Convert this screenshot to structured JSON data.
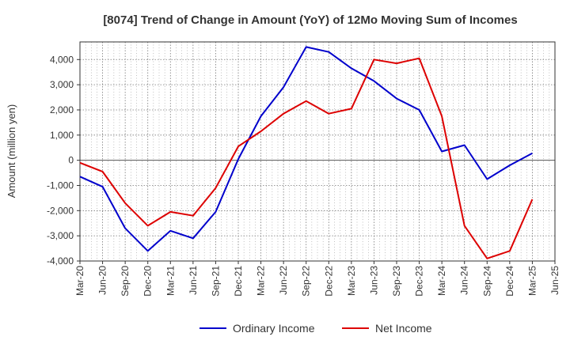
{
  "chart_data": {
    "type": "line",
    "title": "[8074]  Trend of Change in Amount (YoY) of 12Mo Moving Sum of Incomes",
    "xlabel": "",
    "ylabel": "Amount (million yen)",
    "ylim": [
      -4000,
      4700
    ],
    "yticks": [
      -4000,
      -3000,
      -2000,
      -1000,
      0,
      1000,
      2000,
      3000,
      4000
    ],
    "ytick_labels": [
      "-4,000",
      "-3,000",
      "-2,000",
      "-1,000",
      "0",
      "1,000",
      "2,000",
      "3,000",
      "4,000"
    ],
    "categories": [
      "Mar-20",
      "Jun-20",
      "Sep-20",
      "Dec-20",
      "Mar-21",
      "Jun-21",
      "Sep-21",
      "Dec-21",
      "Mar-22",
      "Jun-22",
      "Sep-22",
      "Dec-22",
      "Mar-23",
      "Jun-23",
      "Sep-23",
      "Dec-23",
      "Mar-24",
      "Jun-24",
      "Sep-24",
      "Dec-24",
      "Mar-25",
      "Jun-25"
    ],
    "grid": true,
    "legend_position": "bottom",
    "series": [
      {
        "name": "Ordinary Income",
        "color": "#0000cc",
        "values": [
          -650,
          -1050,
          -2700,
          -3600,
          -2800,
          -3100,
          -2050,
          50,
          1750,
          2900,
          4500,
          4300,
          3650,
          3150,
          2450,
          2000,
          350,
          600,
          -750,
          -200,
          280,
          null
        ]
      },
      {
        "name": "Net Income",
        "color": "#dd0000",
        "values": [
          -100,
          -450,
          -1700,
          -2600,
          -2050,
          -2200,
          -1100,
          550,
          1150,
          1850,
          2350,
          1850,
          2050,
          4000,
          3850,
          4050,
          1750,
          -2600,
          -3900,
          -3600,
          -1550,
          null
        ]
      }
    ]
  }
}
